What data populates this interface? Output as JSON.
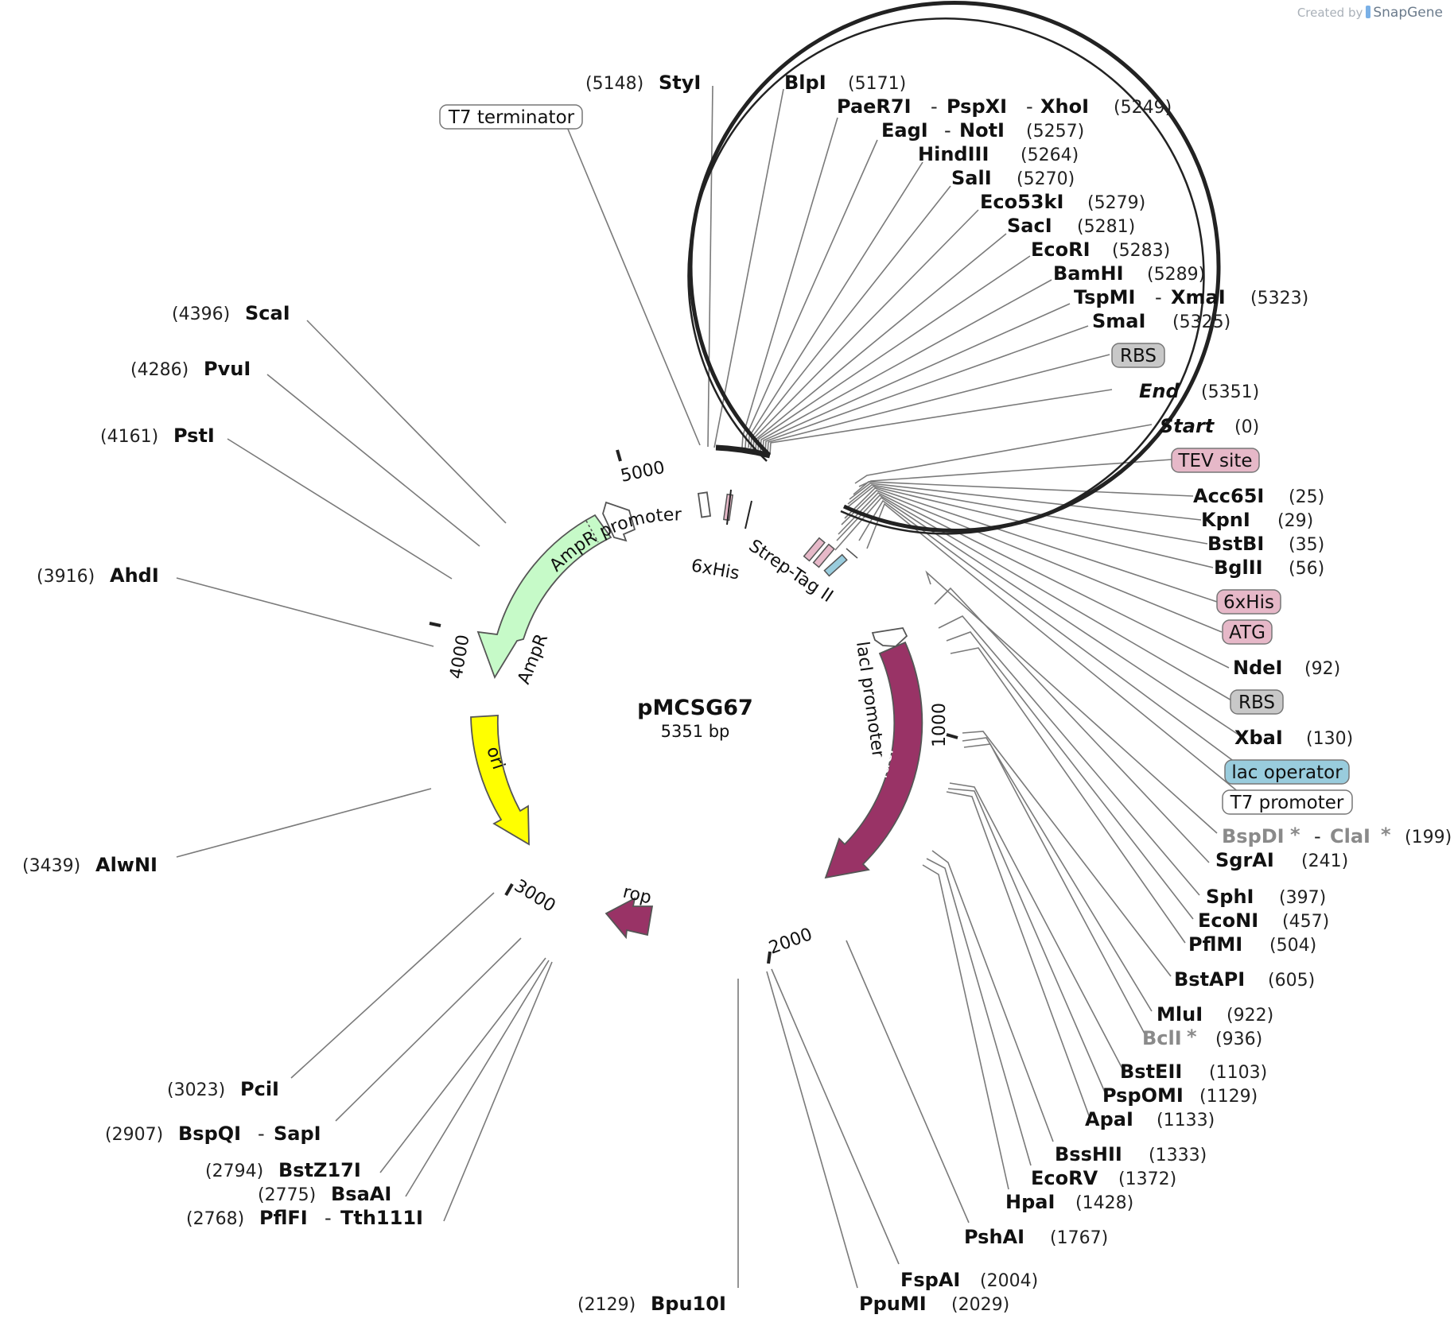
{
  "plasmid": {
    "name": "pMCSG67",
    "size_label": "5351 bp"
  },
  "watermark": {
    "prefix": "Created by",
    "brand": "SnapGene"
  },
  "ticks": [
    "1000",
    "2000",
    "3000",
    "4000",
    "5000"
  ],
  "features": {
    "ampr": "AmpR",
    "ampr_promoter": "AmpR promoter",
    "ori": "ori",
    "laci": "lacI",
    "laci_promoter": "lacI promoter",
    "rop": "rop",
    "his6": "6xHis",
    "strep": "Strep-Tag II"
  },
  "colors": {
    "ampr": "#c6fac8",
    "ori": "#ffff00",
    "laci": "#993366",
    "rop": "#993366",
    "pink_box": "#e6b8c8",
    "gray_box": "#c8c8c8",
    "teal_box": "#99ccdd"
  },
  "boxes": {
    "t7_terminator": "T7 terminator",
    "rbs_1": "RBS",
    "tev_site": "TEV site",
    "his6": "6xHis",
    "atg": "ATG",
    "rbs_2": "RBS",
    "lac_operator": "lac operator",
    "t7_promoter": "T7 promoter"
  },
  "sites": {
    "styi": {
      "name": "StyI",
      "pos": "(5148)"
    },
    "blpi": {
      "name": "BlpI",
      "pos": "(5171)"
    },
    "paer7i": {
      "name": "PaeR7I",
      "name2": "PspXI",
      "name3": "XhoI",
      "pos": "(5249)"
    },
    "eagi": {
      "name": "EagI",
      "name2": "NotI",
      "pos": "(5257)"
    },
    "hindiii": {
      "name": "HindIII",
      "pos": "(5264)"
    },
    "sali": {
      "name": "SalI",
      "pos": "(5270)"
    },
    "eco53ki": {
      "name": "Eco53kI",
      "pos": "(5279)"
    },
    "saci": {
      "name": "SacI",
      "pos": "(5281)"
    },
    "ecori": {
      "name": "EcoRI",
      "pos": "(5283)"
    },
    "bamhi": {
      "name": "BamHI",
      "pos": "(5289)"
    },
    "tspmi": {
      "name": "TspMI",
      "name2": "XmaI",
      "pos": "(5323)"
    },
    "smai": {
      "name": "SmaI",
      "pos": "(5325)"
    },
    "end": {
      "name": "End",
      "pos": "(5351)"
    },
    "start": {
      "name": "Start",
      "pos": "(0)"
    },
    "acc65i": {
      "name": "Acc65I",
      "pos": "(25)"
    },
    "kpni": {
      "name": "KpnI",
      "pos": "(29)"
    },
    "bstbi": {
      "name": "BstBI",
      "pos": "(35)"
    },
    "bglii": {
      "name": "BglII",
      "pos": "(56)"
    },
    "ndei": {
      "name": "NdeI",
      "pos": "(92)"
    },
    "xbai": {
      "name": "XbaI",
      "pos": "(130)"
    },
    "bspdi": {
      "name": "BspDI",
      "star": "*",
      "name2": "ClaI",
      "star2": "*",
      "pos": "(199)"
    },
    "sgrai": {
      "name": "SgrAI",
      "pos": "(241)"
    },
    "sphi": {
      "name": "SphI",
      "pos": "(397)"
    },
    "econi": {
      "name": "EcoNI",
      "pos": "(457)"
    },
    "pflmi": {
      "name": "PflMI",
      "pos": "(504)"
    },
    "bstapi": {
      "name": "BstAPI",
      "pos": "(605)"
    },
    "mlui": {
      "name": "MluI",
      "pos": "(922)"
    },
    "bcli": {
      "name": "BclI",
      "star": "*",
      "pos": "(936)"
    },
    "bsteii": {
      "name": "BstEII",
      "pos": "(1103)"
    },
    "pspomi": {
      "name": "PspOMI",
      "pos": "(1129)"
    },
    "apai": {
      "name": "ApaI",
      "pos": "(1133)"
    },
    "bsshii": {
      "name": "BssHII",
      "pos": "(1333)"
    },
    "ecorv": {
      "name": "EcoRV",
      "pos": "(1372)"
    },
    "hpai": {
      "name": "HpaI",
      "pos": "(1428)"
    },
    "pshai": {
      "name": "PshAI",
      "pos": "(1767)"
    },
    "fspai": {
      "name": "FspAI",
      "pos": "(2004)"
    },
    "ppumi": {
      "name": "PpuMI",
      "pos": "(2029)"
    },
    "bpu10i": {
      "name": "Bpu10I",
      "pos": "(2129)"
    },
    "pflfi": {
      "name": "PflFI",
      "name2": "Tth111I",
      "pos": "(2768)"
    },
    "bsaai": {
      "name": "BsaAI",
      "pos": "(2775)"
    },
    "bstz17i": {
      "name": "BstZ17I",
      "pos": "(2794)"
    },
    "bspqi": {
      "name": "BspQI",
      "name2": "SapI",
      "pos": "(2907)"
    },
    "pcii": {
      "name": "PciI",
      "pos": "(3023)"
    },
    "alwni": {
      "name": "AlwNI",
      "pos": "(3439)"
    },
    "ahdi": {
      "name": "AhdI",
      "pos": "(3916)"
    },
    "psti": {
      "name": "PstI",
      "pos": "(4161)"
    },
    "pvui": {
      "name": "PvuI",
      "pos": "(4286)"
    },
    "scai": {
      "name": "ScaI",
      "pos": "(4396)"
    }
  }
}
